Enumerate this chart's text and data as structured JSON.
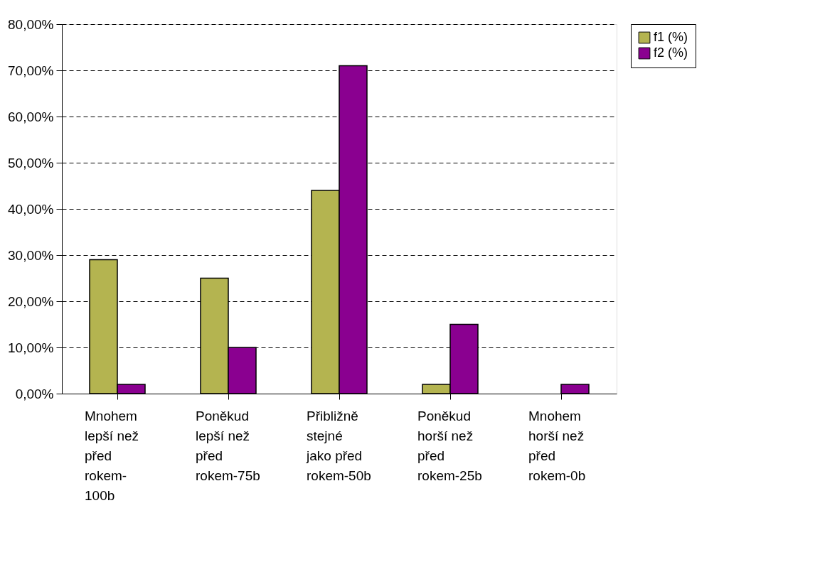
{
  "chart_data": {
    "type": "bar",
    "categories": [
      "Mnohem lepší než před rokem-100b",
      "Poněkud lepší než před rokem-75b",
      "Přibližně stejné jako před rokem-50b",
      "Poněkud horší než před rokem-25b",
      "Mnohem horší než před rokem-0b"
    ],
    "series": [
      {
        "name": "f1 (%)",
        "color": "#b4b450",
        "values": [
          29,
          25,
          44,
          2,
          null
        ]
      },
      {
        "name": "f2 (%)",
        "color": "#8a0090",
        "values": [
          2,
          10,
          71,
          15,
          2
        ]
      }
    ],
    "ylim": [
      0,
      80
    ],
    "yticks": [
      {
        "value": 0,
        "label": "0,00%"
      },
      {
        "value": 10,
        "label": "10,00%"
      },
      {
        "value": 20,
        "label": "20,00%"
      },
      {
        "value": 30,
        "label": "30,00%"
      },
      {
        "value": 40,
        "label": "40,00%"
      },
      {
        "value": 50,
        "label": "50,00%"
      },
      {
        "value": 60,
        "label": "60,00%"
      },
      {
        "value": 70,
        "label": "70,00%"
      },
      {
        "value": 80,
        "label": "80,00%"
      }
    ],
    "grid": "y",
    "legend": "right"
  }
}
